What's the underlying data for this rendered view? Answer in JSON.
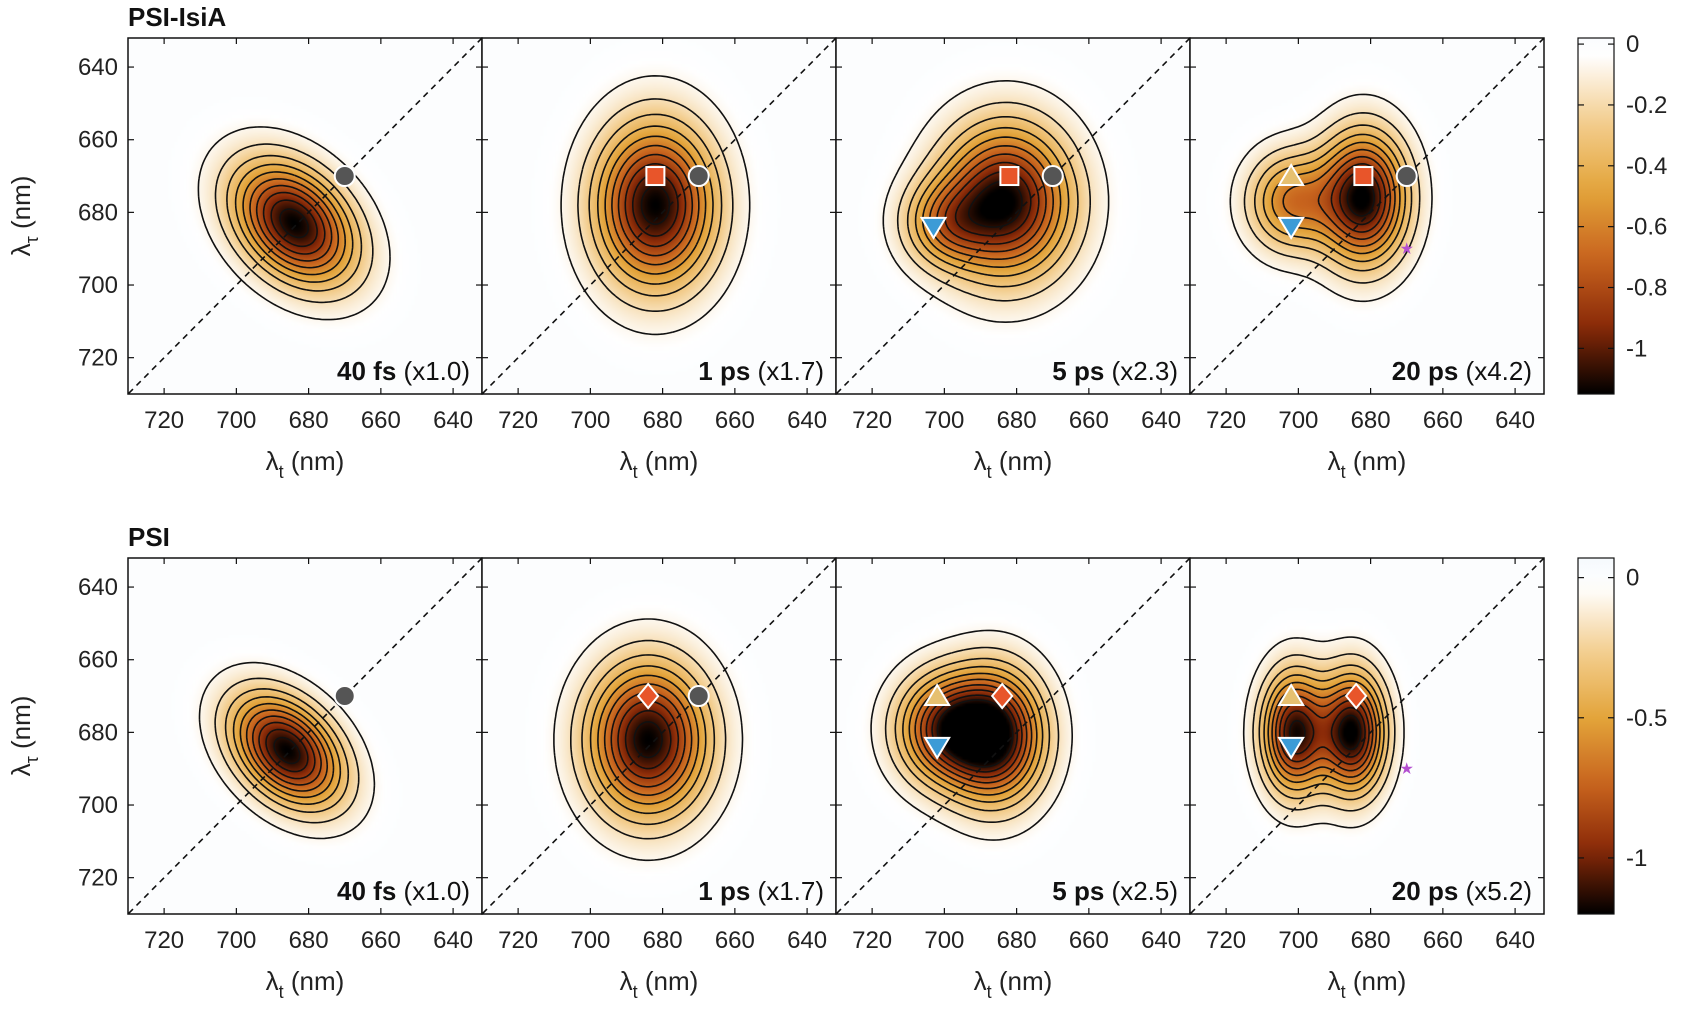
{
  "chart_data": {
    "type": "heatmap",
    "subtype": "2D electronic spectra (contour maps)",
    "x_axis": {
      "label_symbol": "λ",
      "label_sub": "t",
      "label_unit": " (nm)",
      "ticks": [
        720,
        700,
        680,
        660,
        640
      ],
      "range": [
        730,
        632
      ],
      "reversed": true
    },
    "y_axis": {
      "label_symbol": "λ",
      "label_sub": "τ",
      "label_unit": " (nm)",
      "ticks": [
        640,
        660,
        680,
        700,
        720
      ],
      "range": [
        632,
        730
      ]
    },
    "rows": [
      {
        "title": "PSI-IsiA",
        "colorbar": {
          "ticks": [
            "0",
            "-0.2",
            "-0.4",
            "-0.6",
            "-0.8",
            "-1"
          ],
          "tick_values": [
            0,
            -0.2,
            -0.4,
            -0.6,
            -0.8,
            -1
          ],
          "range": [
            0.02,
            -1.15
          ]
        },
        "panels": [
          {
            "time": "40 fs",
            "scale": "(x1.0)",
            "peaks": [
              {
                "x": 684,
                "y": 683,
                "sx": 9,
                "sy": 13,
                "rot": 45,
                "amp": 1.0
              }
            ],
            "markers": [
              {
                "shape": "circle",
                "x": 670,
                "y": 670
              }
            ]
          },
          {
            "time": "1 ps",
            "scale": "(x1.7)",
            "peaks": [
              {
                "x": 682,
                "y": 678,
                "sx": 11,
                "sy": 15,
                "rot": 0,
                "amp": 1.0
              }
            ],
            "markers": [
              {
                "shape": "square",
                "x": 682,
                "y": 670
              },
              {
                "shape": "circle",
                "x": 670,
                "y": 670
              }
            ]
          },
          {
            "time": "5 ps",
            "scale": "(x2.3)",
            "peaks": [
              {
                "x": 683,
                "y": 677,
                "sx": 12,
                "sy": 14,
                "rot": 0,
                "amp": 1.0
              },
              {
                "x": 700,
                "y": 683,
                "sx": 8,
                "sy": 8,
                "rot": 0,
                "amp": 0.4
              }
            ],
            "markers": [
              {
                "shape": "square",
                "x": 682,
                "y": 670
              },
              {
                "shape": "circle",
                "x": 670,
                "y": 670
              },
              {
                "shape": "triangle-down",
                "x": 703,
                "y": 684
              }
            ]
          },
          {
            "time": "20 ps",
            "scale": "(x4.2)",
            "peaks": [
              {
                "x": 682,
                "y": 676,
                "sx": 8,
                "sy": 12,
                "rot": 0,
                "amp": 1.0
              },
              {
                "x": 702,
                "y": 677,
                "sx": 8,
                "sy": 9,
                "rot": 0,
                "amp": 0.55
              }
            ],
            "markers": [
              {
                "shape": "square",
                "x": 682,
                "y": 670
              },
              {
                "shape": "circle",
                "x": 670,
                "y": 670
              },
              {
                "shape": "triangle-up",
                "x": 702,
                "y": 670
              },
              {
                "shape": "triangle-down",
                "x": 702,
                "y": 684
              },
              {
                "shape": "star",
                "x": 670,
                "y": 690
              }
            ]
          }
        ]
      },
      {
        "title": "PSI",
        "colorbar": {
          "ticks": [
            "0",
            "-0.5",
            "-1"
          ],
          "tick_values": [
            0,
            -0.5,
            -1
          ],
          "range": [
            0.07,
            -1.2
          ]
        },
        "panels": [
          {
            "time": "40 fs",
            "scale": "(x1.0)",
            "peaks": [
              {
                "x": 686,
                "y": 685,
                "sx": 8,
                "sy": 12,
                "rot": 45,
                "amp": 1.0
              }
            ],
            "markers": [
              {
                "shape": "circle",
                "x": 670,
                "y": 670
              }
            ]
          },
          {
            "time": "1 ps",
            "scale": "(x1.7)",
            "peaks": [
              {
                "x": 684,
                "y": 682,
                "sx": 11,
                "sy": 14,
                "rot": 0,
                "amp": 1.0
              }
            ],
            "markers": [
              {
                "shape": "diamond",
                "x": 684,
                "y": 670
              },
              {
                "shape": "circle",
                "x": 670,
                "y": 670
              }
            ]
          },
          {
            "time": "5 ps",
            "scale": "(x2.5)",
            "peaks": [
              {
                "x": 686,
                "y": 681,
                "sx": 9,
                "sy": 12,
                "rot": 0,
                "amp": 1.0
              },
              {
                "x": 700,
                "y": 679,
                "sx": 9,
                "sy": 10,
                "rot": 0,
                "amp": 0.75
              }
            ],
            "markers": [
              {
                "shape": "triangle-up",
                "x": 702,
                "y": 670
              },
              {
                "shape": "diamond",
                "x": 684,
                "y": 670
              },
              {
                "shape": "triangle-down",
                "x": 702,
                "y": 684
              }
            ]
          },
          {
            "time": "20 ps",
            "scale": "(x5.2)",
            "peaks": [
              {
                "x": 685,
                "y": 680,
                "sx": 6,
                "sy": 11,
                "rot": 0,
                "amp": 1.0
              },
              {
                "x": 701,
                "y": 680,
                "sx": 6,
                "sy": 11,
                "rot": 0,
                "amp": 0.95
              }
            ],
            "markers": [
              {
                "shape": "triangle-up",
                "x": 702,
                "y": 670
              },
              {
                "shape": "diamond",
                "x": 684,
                "y": 670
              },
              {
                "shape": "triangle-down",
                "x": 702,
                "y": 684
              },
              {
                "shape": "star",
                "x": 670,
                "y": 690
              }
            ]
          }
        ]
      }
    ],
    "marker_colors": {
      "circle": "#555555",
      "square": "#e8552a",
      "diamond": "#e8552a",
      "triangle-down": "#3c9bd6",
      "triangle-up": "#e6c070",
      "star": "#b44fd0"
    },
    "colormap": [
      "#eaf3fb",
      "#ffffff",
      "#f3cd8d",
      "#e3a43a",
      "#c8641e",
      "#8a2a08",
      "#000000"
    ]
  }
}
